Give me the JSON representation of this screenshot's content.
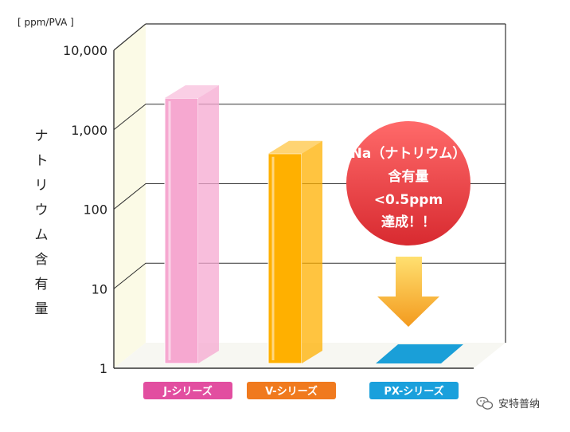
{
  "chart_data": {
    "type": "bar",
    "scale": "log",
    "unit_label": "[ ppm/PVA ]",
    "ylabel": "ナトリウム含有量",
    "yticks": [
      "10,000",
      "1,000",
      "100",
      "10",
      "1"
    ],
    "ylim": [
      1,
      10000
    ],
    "categories": [
      "J-シリーズ",
      "V-シリーズ",
      "PX-シリーズ"
    ],
    "values": [
      2500,
      500,
      1
    ],
    "bar_colors": [
      "#f6a8d0",
      "#ffb000",
      "#1a9fd8"
    ],
    "label_colors": [
      "#e24ea0",
      "#f07a1e",
      "#1aa0dc"
    ],
    "callout": [
      "Na（ナトリウム）",
      "含有量",
      "<0.5ppm",
      "達成！！"
    ],
    "callout_color": "#e83a3f",
    "arrow_color": "#f39a1e"
  },
  "watermark": "安特普纳"
}
